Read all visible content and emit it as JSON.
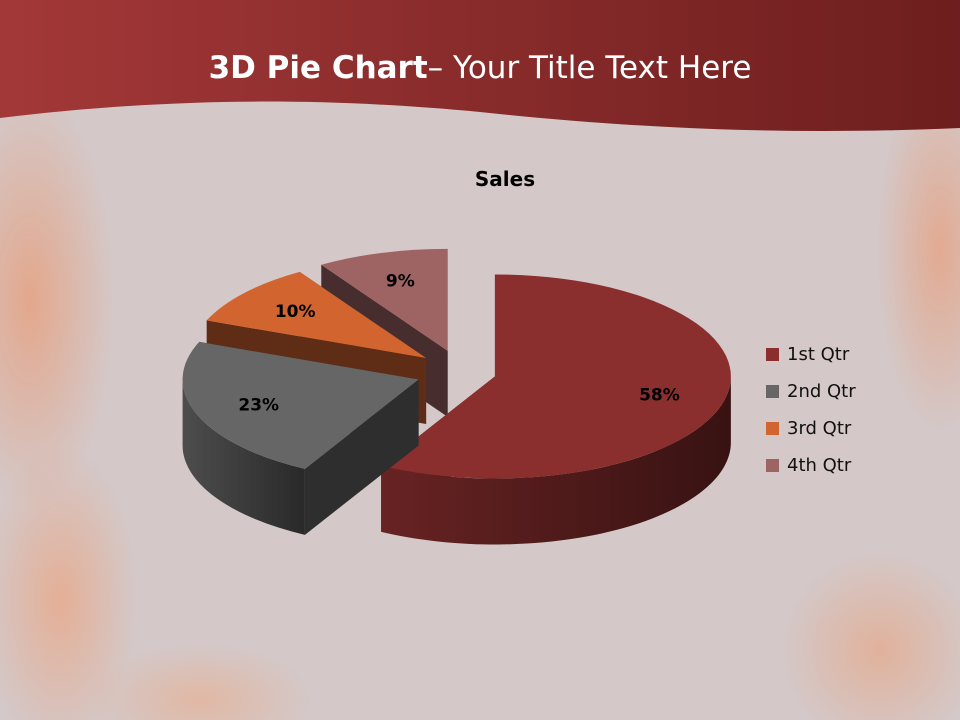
{
  "slide": {
    "title_bold": "3D Pie Chart",
    "title_rest": "– Your Title Text Here"
  },
  "colors": {
    "header": "#8c2b2b",
    "background": "#d4c8c8"
  },
  "chart_data": {
    "type": "pie",
    "variant": "3d-exploded",
    "title": "Sales",
    "categories": [
      "1st Qtr",
      "2nd Qtr",
      "3rd Qtr",
      "4th Qtr"
    ],
    "values": [
      58,
      23,
      10,
      9
    ],
    "labels": [
      "58%",
      "23%",
      "10%",
      "9%"
    ],
    "colors": [
      "#8b2e2e",
      "#666666",
      "#d2652f",
      "#9e6464"
    ],
    "legend_position": "right"
  }
}
